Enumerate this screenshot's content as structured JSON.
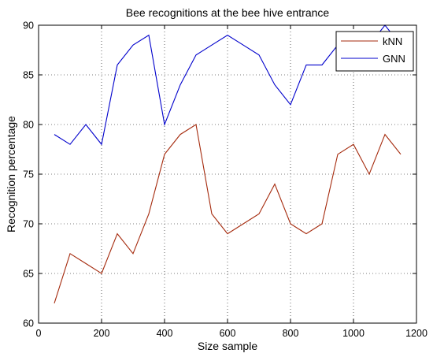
{
  "chart_data": {
    "type": "line",
    "title": "Bee recognitions at the bee hive entrance",
    "xlabel": "Size sample",
    "ylabel": "Recognition percentage",
    "xlim": [
      0,
      1200
    ],
    "ylim": [
      60,
      90
    ],
    "xticks": [
      0,
      200,
      400,
      600,
      800,
      1000,
      1200
    ],
    "yticks": [
      60,
      65,
      70,
      75,
      80,
      85,
      90
    ],
    "grid": true,
    "grid_style": "dotted",
    "legend_position": "top-right",
    "series": [
      {
        "name": "kNN",
        "color": "#a52a0d",
        "x": [
          50,
          100,
          150,
          200,
          250,
          300,
          350,
          400,
          450,
          500,
          550,
          600,
          650,
          700,
          750,
          800,
          850,
          900,
          950,
          1000,
          1050,
          1100,
          1150
        ],
        "y": [
          62,
          67,
          66,
          65,
          69,
          67,
          71,
          77,
          79,
          80,
          71,
          69,
          70,
          71,
          74,
          70,
          69,
          70,
          77,
          78,
          75,
          79,
          77
        ]
      },
      {
        "name": "GNN",
        "color": "#0000cc",
        "x": [
          50,
          100,
          150,
          200,
          250,
          300,
          350,
          400,
          450,
          500,
          550,
          600,
          650,
          700,
          750,
          800,
          850,
          900,
          950,
          1000,
          1050,
          1100,
          1150
        ],
        "y": [
          79,
          78,
          80,
          78,
          86,
          88,
          89,
          80,
          84,
          87,
          88,
          89,
          88,
          87,
          84,
          82,
          86,
          86,
          88,
          89,
          88,
          90,
          88
        ]
      }
    ]
  }
}
